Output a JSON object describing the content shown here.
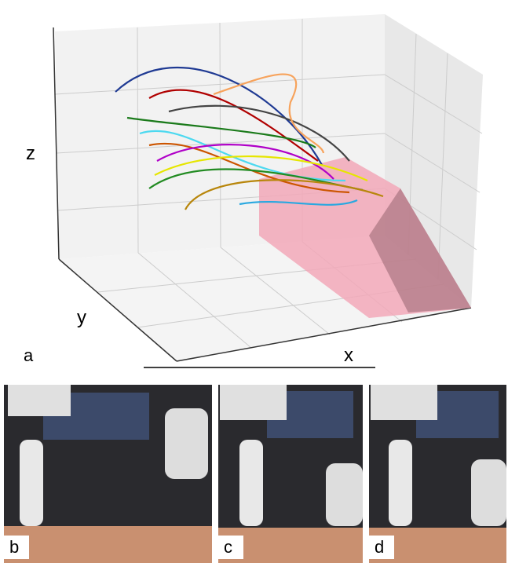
{
  "figure": {
    "panel_a": {
      "label": "a",
      "axes": {
        "x": "x",
        "y": "y",
        "z": "z"
      }
    },
    "photos": [
      {
        "label": "b"
      },
      {
        "label": "c"
      },
      {
        "label": "d"
      }
    ]
  }
}
